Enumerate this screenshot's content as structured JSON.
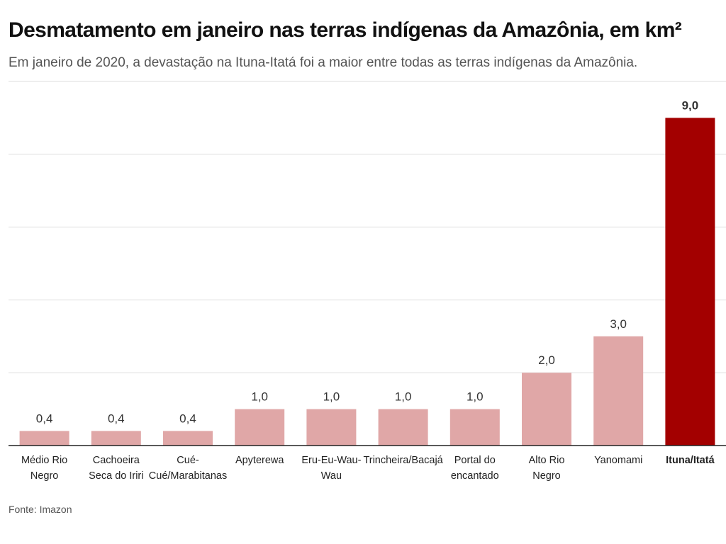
{
  "title": "Desmatamento em janeiro nas terras indígenas da Amazônia, em km²",
  "subtitle": "Em janeiro de 2020, a devastação na Ituna-Itatá foi a maior entre todas as terras indígenas da Amazônia.",
  "source": "Fonte: Imazon",
  "colors": {
    "bar": "#e0a7a7",
    "highlight": "#a30000",
    "grid": "#dddddd",
    "axis": "#222222"
  },
  "chart_data": {
    "type": "bar",
    "title": "Desmatamento em janeiro nas terras indígenas da Amazônia, em km²",
    "categories": [
      [
        "Médio Rio",
        "Negro"
      ],
      [
        "Cachoeira",
        "Seca do Iriri"
      ],
      [
        "Cué-",
        "Cué/Marabitanas"
      ],
      [
        "Apyterewa"
      ],
      [
        "Eru-Eu-Wau-",
        "Wau"
      ],
      [
        "Trincheira/Bacajá"
      ],
      [
        "Portal do",
        "encantado"
      ],
      [
        "Alto Rio",
        "Negro"
      ],
      [
        "Yanomami"
      ],
      [
        "Ituna/Itatá"
      ]
    ],
    "values": [
      0.4,
      0.4,
      0.4,
      1.0,
      1.0,
      1.0,
      1.0,
      2.0,
      3.0,
      9.0
    ],
    "value_labels": [
      "0,4",
      "0,4",
      "0,4",
      "1,0",
      "1,0",
      "1,0",
      "1,0",
      "2,0",
      "3,0",
      "9,0"
    ],
    "highlight_index": 9,
    "ylim": [
      0,
      10
    ],
    "y_gridlines": [
      0,
      2,
      4,
      6,
      8,
      10
    ],
    "y_tick_labels_visible": false,
    "xlabel": "",
    "ylabel": "",
    "grid": true,
    "legend": "none"
  }
}
